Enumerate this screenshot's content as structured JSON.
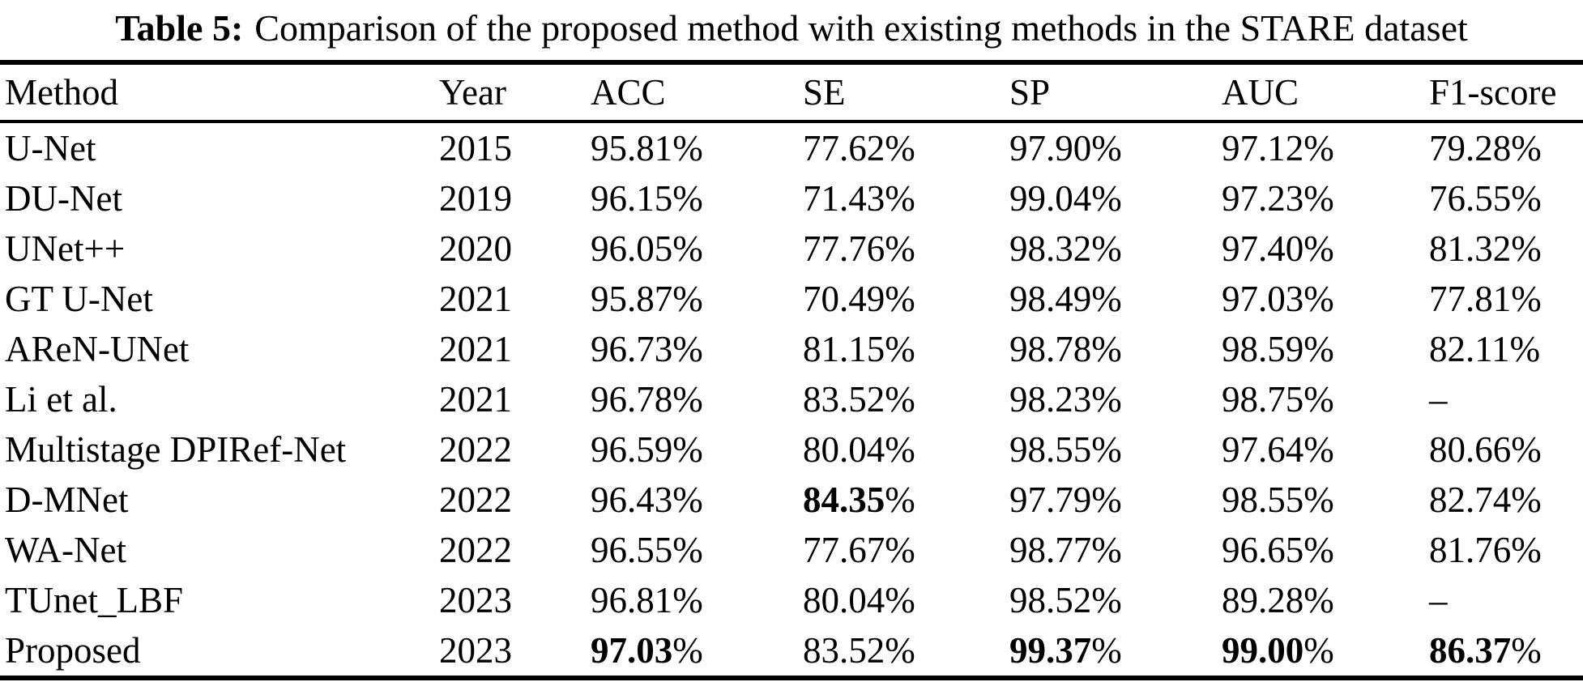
{
  "caption": {
    "label": "Table 5:",
    "text": "Comparison of the proposed method with existing methods in the STARE dataset"
  },
  "table": {
    "columns": [
      "Method",
      "Year",
      "ACC",
      "SE",
      "SP",
      "AUC",
      "F1-score"
    ],
    "column_keys": [
      "method",
      "year",
      "acc",
      "se",
      "sp",
      "auc",
      "f1"
    ],
    "percent_symbol": "%",
    "rows": [
      {
        "cells": [
          {
            "text": "U-Net"
          },
          {
            "text": "2015"
          },
          {
            "text": "95.81",
            "pct": true
          },
          {
            "text": "77.62",
            "pct": true
          },
          {
            "text": "97.90",
            "pct": true
          },
          {
            "text": "97.12",
            "pct": true
          },
          {
            "text": "79.28",
            "pct": true
          }
        ]
      },
      {
        "cells": [
          {
            "text": "DU-Net"
          },
          {
            "text": "2019"
          },
          {
            "text": "96.15",
            "pct": true
          },
          {
            "text": "71.43",
            "pct": true
          },
          {
            "text": "99.04",
            "pct": true
          },
          {
            "text": "97.23",
            "pct": true
          },
          {
            "text": "76.55",
            "pct": true
          }
        ]
      },
      {
        "cells": [
          {
            "text": "UNet++"
          },
          {
            "text": "2020"
          },
          {
            "text": "96.05",
            "pct": true
          },
          {
            "text": "77.76",
            "pct": true
          },
          {
            "text": "98.32",
            "pct": true
          },
          {
            "text": "97.40",
            "pct": true
          },
          {
            "text": "81.32",
            "pct": true
          }
        ]
      },
      {
        "cells": [
          {
            "text": "GT U-Net"
          },
          {
            "text": "2021"
          },
          {
            "text": "95.87",
            "pct": true
          },
          {
            "text": "70.49",
            "pct": true
          },
          {
            "text": "98.49",
            "pct": true
          },
          {
            "text": "97.03",
            "pct": true
          },
          {
            "text": "77.81",
            "pct": true
          }
        ]
      },
      {
        "cells": [
          {
            "text": "AReN-UNet"
          },
          {
            "text": "2021"
          },
          {
            "text": "96.73",
            "pct": true
          },
          {
            "text": "81.15",
            "pct": true
          },
          {
            "text": "98.78",
            "pct": true
          },
          {
            "text": "98.59",
            "pct": true
          },
          {
            "text": "82.11",
            "pct": true
          }
        ]
      },
      {
        "cells": [
          {
            "text": "Li et al."
          },
          {
            "text": "2021"
          },
          {
            "text": "96.78",
            "pct": true
          },
          {
            "text": "83.52",
            "pct": true
          },
          {
            "text": "98.23",
            "pct": true
          },
          {
            "text": "98.75",
            "pct": true
          },
          {
            "text": "–"
          }
        ]
      },
      {
        "cells": [
          {
            "text": "Multistage DPIRef-Net"
          },
          {
            "text": "2022"
          },
          {
            "text": "96.59",
            "pct": true
          },
          {
            "text": "80.04",
            "pct": true
          },
          {
            "text": "98.55",
            "pct": true
          },
          {
            "text": "97.64",
            "pct": true
          },
          {
            "text": "80.66",
            "pct": true
          }
        ]
      },
      {
        "cells": [
          {
            "text": "D-MNet"
          },
          {
            "text": "2022"
          },
          {
            "text": "96.43",
            "pct": true
          },
          {
            "text": "84.35",
            "pct": true,
            "bold": true
          },
          {
            "text": "97.79",
            "pct": true
          },
          {
            "text": "98.55",
            "pct": true
          },
          {
            "text": "82.74",
            "pct": true
          }
        ]
      },
      {
        "cells": [
          {
            "text": "WA-Net"
          },
          {
            "text": "2022"
          },
          {
            "text": "96.55",
            "pct": true
          },
          {
            "text": "77.67",
            "pct": true
          },
          {
            "text": "98.77",
            "pct": true
          },
          {
            "text": "96.65",
            "pct": true
          },
          {
            "text": "81.76",
            "pct": true
          }
        ]
      },
      {
        "cells": [
          {
            "text": "TUnet_LBF"
          },
          {
            "text": "2023"
          },
          {
            "text": "96.81",
            "pct": true
          },
          {
            "text": "80.04",
            "pct": true
          },
          {
            "text": "98.52",
            "pct": true
          },
          {
            "text": "89.28",
            "pct": true
          },
          {
            "text": "–"
          }
        ]
      },
      {
        "cells": [
          {
            "text": "Proposed"
          },
          {
            "text": "2023"
          },
          {
            "text": "97.03",
            "pct": true,
            "bold": true
          },
          {
            "text": "83.52",
            "pct": true
          },
          {
            "text": "99.37",
            "pct": true,
            "bold": true
          },
          {
            "text": "99.00",
            "pct": true,
            "bold": true
          },
          {
            "text": "86.37",
            "pct": true,
            "bold": true
          }
        ]
      }
    ]
  }
}
